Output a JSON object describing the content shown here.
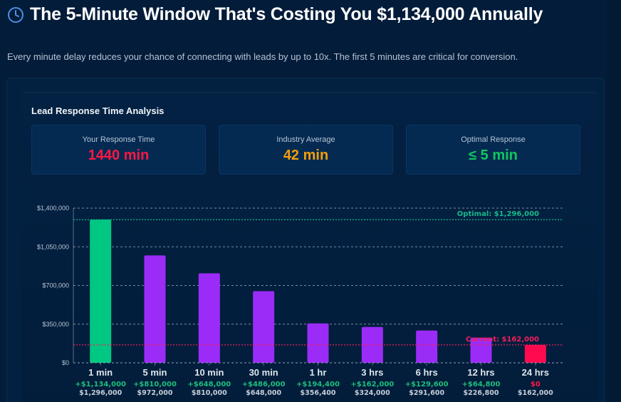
{
  "header": {
    "icon": "clock-icon",
    "title": "The 5-Minute Window That's Costing You $1,134,000 Annually",
    "subtitle": "Every minute delay reduces your chance of connecting with leads by up to 10x. The first 5 minutes are critical for conversion."
  },
  "section_title": "Lead Response Time Analysis",
  "stats": [
    {
      "label": "Your Response Time",
      "value": "1440 min",
      "color": "#ff1744"
    },
    {
      "label": "Industry Average",
      "value": "42 min",
      "color": "#f59e0b"
    },
    {
      "label": "Optimal Response",
      "value": "≤ 5 min",
      "color": "#10c75f"
    }
  ],
  "colors": {
    "optimal_bar": "#00c781",
    "middle_bar": "#9b2cf8",
    "current_bar": "#ff0a4e",
    "optimal_line": "#18b98a",
    "current_line": "#f01f5c",
    "gain_text": "#1dbd7d",
    "zero_text": "#ff1744",
    "grid": "#8da0b8"
  },
  "chart_data": {
    "type": "bar",
    "title": "Lead Response Time Analysis",
    "xlabel": "",
    "ylabel": "",
    "ylim": [
      0,
      1400000
    ],
    "yticks": [
      0,
      350000,
      700000,
      1050000,
      1400000
    ],
    "ytick_labels": [
      "$0",
      "$350,000",
      "$700,000",
      "$1,050,000",
      "$1,400,000"
    ],
    "grid": true,
    "categories": [
      "1 min",
      "5 min",
      "10 min",
      "30 min",
      "1 hr",
      "3 hrs",
      "6 hrs",
      "12 hrs",
      "24 hrs"
    ],
    "values": [
      1296000,
      972000,
      810000,
      648000,
      356400,
      324000,
      291600,
      226800,
      162000
    ],
    "value_labels": [
      "$1,296,000",
      "$972,000",
      "$810,000",
      "$648,000",
      "$356,400",
      "$324,000",
      "$291,600",
      "$226,800",
      "$162,000"
    ],
    "gain_labels": [
      "+$1,134,000",
      "+$810,000",
      "+$648,000",
      "+$486,000",
      "+$194,400",
      "+$162,000",
      "+$129,600",
      "+$64,800",
      "$0"
    ],
    "reference_lines": [
      {
        "name": "optimal",
        "label": "Optimal: $1,296,000",
        "value": 1296000
      },
      {
        "name": "current",
        "label": "Current: $162,000",
        "value": 162000
      }
    ]
  }
}
